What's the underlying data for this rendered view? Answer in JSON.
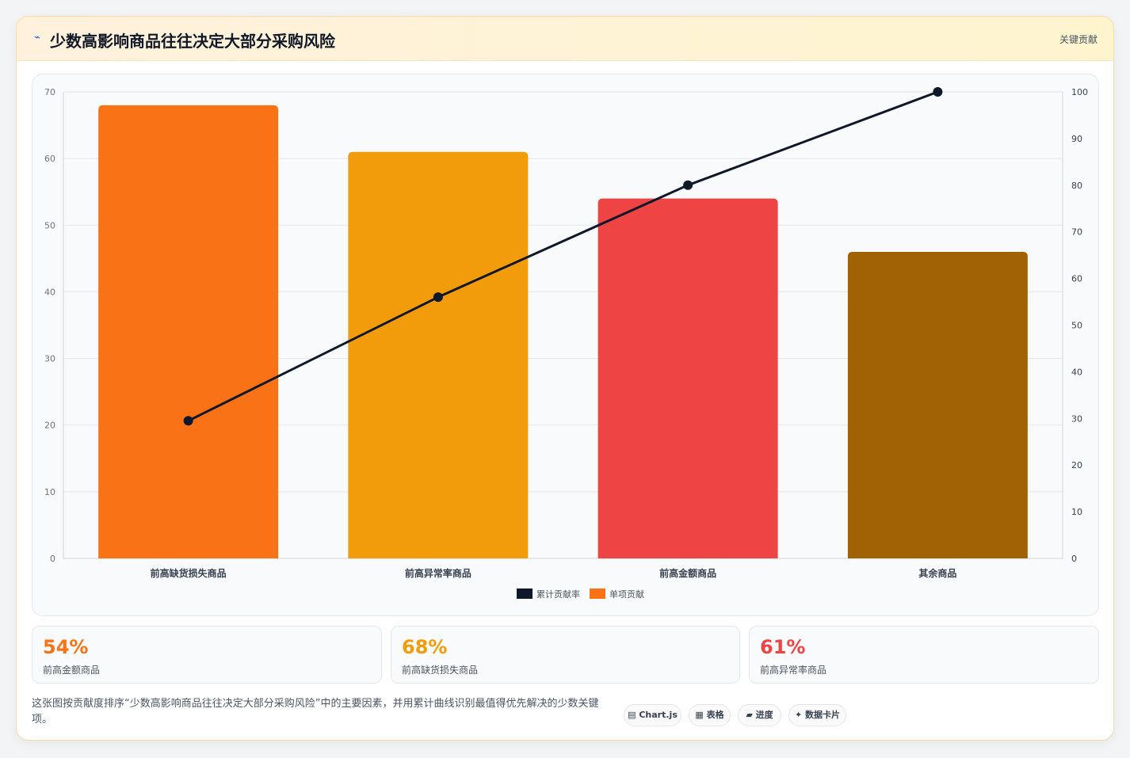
{
  "header": {
    "icon": "⌁",
    "title": "少数高影响商品往往决定大部分采购风险",
    "badge": "关键贡献"
  },
  "chart_data": {
    "type": "bar",
    "categories": [
      "前高缺货损失商品",
      "前高异常率商品",
      "前高金额商品",
      "其余商品"
    ],
    "series": [
      {
        "name": "单项贡献",
        "type": "bar",
        "axis": "left",
        "values": [
          68,
          61,
          54,
          46
        ],
        "colors": [
          "#f97316",
          "#f39c0b",
          "#ef4444",
          "#a16205"
        ]
      },
      {
        "name": "累计贡献率",
        "type": "line",
        "axis": "right",
        "values": [
          29.5,
          56,
          80,
          100
        ],
        "color": "#0f172a"
      }
    ],
    "ylim": [
      0,
      70
    ],
    "yticks": [
      0,
      10,
      20,
      30,
      40,
      50,
      60,
      70
    ],
    "y2lim": [
      0,
      100
    ],
    "y2ticks": [
      0,
      10,
      20,
      30,
      40,
      50,
      60,
      70,
      80,
      90,
      100
    ],
    "legend": [
      {
        "label": "累计贡献率",
        "color": "#0f172a"
      },
      {
        "label": "单项贡献",
        "color": "#f97316"
      }
    ],
    "legend_position": "bottom",
    "grid": true
  },
  "stats": [
    {
      "value": "54%",
      "label": "前高金额商品",
      "color": "#f97316"
    },
    {
      "value": "68%",
      "label": "前高缺货损失商品",
      "color": "#f39c0b"
    },
    {
      "value": "61%",
      "label": "前高异常率商品",
      "color": "#ef4444"
    }
  ],
  "description": "这张图按贡献度排序“少数高影响商品往往决定大部分采购风险”中的主要因素，并用累计曲线识别最值得优先解决的少数关键项。",
  "tags": [
    {
      "icon": "▤",
      "label": "Chart.js"
    },
    {
      "icon": "▦",
      "label": "表格"
    },
    {
      "icon": "▰",
      "label": "进度"
    },
    {
      "icon": "✦",
      "label": "数据卡片"
    }
  ]
}
